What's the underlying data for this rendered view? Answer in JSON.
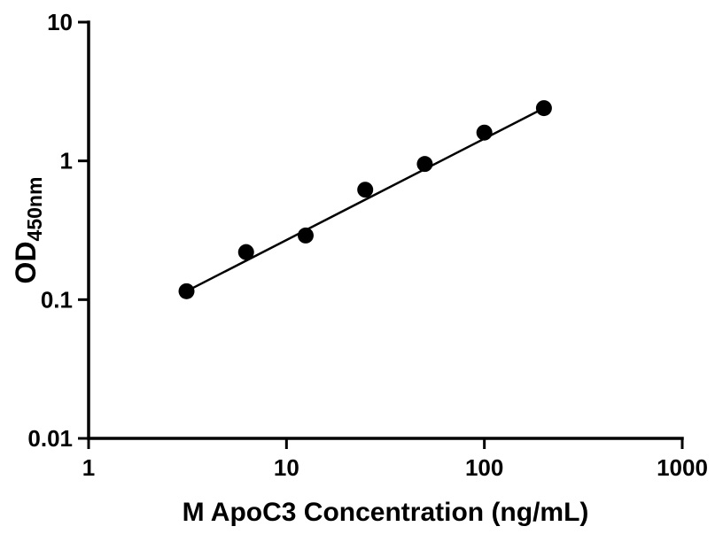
{
  "page": {
    "background_color": "#ffffff"
  },
  "chart_data": {
    "type": "scatter",
    "title": "",
    "xlabel": "M ApoC3 Concentration (ng/mL)",
    "ylabel_main": "OD",
    "ylabel_sub": "450nm",
    "x_scale": "log",
    "y_scale": "log",
    "xlim": [
      1,
      1000
    ],
    "ylim": [
      0.01,
      10
    ],
    "x_ticks": [
      1,
      10,
      100,
      1000
    ],
    "x_tick_labels": [
      "1",
      "10",
      "100",
      "1000"
    ],
    "y_ticks": [
      0.01,
      0.1,
      1,
      10
    ],
    "y_tick_labels": [
      "0.01",
      "0.1",
      "1",
      "10"
    ],
    "grid": false,
    "legend": "none",
    "axis_color": "#000000",
    "series": [
      {
        "marker": "circle",
        "marker_radius": 9,
        "color": "#000000",
        "line": "straight-fit-loglog",
        "points": [
          {
            "x": 3.125,
            "y": 0.115
          },
          {
            "x": 6.25,
            "y": 0.22
          },
          {
            "x": 12.5,
            "y": 0.29
          },
          {
            "x": 25,
            "y": 0.62
          },
          {
            "x": 50,
            "y": 0.95
          },
          {
            "x": 100,
            "y": 1.6
          },
          {
            "x": 200,
            "y": 2.4
          }
        ]
      }
    ]
  }
}
